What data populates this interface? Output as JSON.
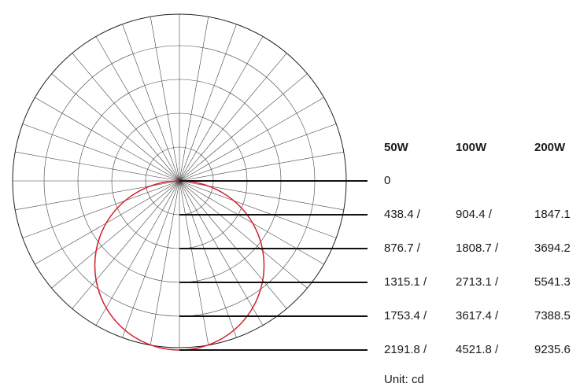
{
  "chart_data": {
    "type": "polar",
    "headers": [
      "50W",
      "100W",
      "200W"
    ],
    "rings": [
      {
        "v50": "0",
        "v100": "",
        "v200": ""
      },
      {
        "v50": "438.4 /",
        "v100": "904.4 /",
        "v200": "1847.1"
      },
      {
        "v50": "876.7 /",
        "v100": "1808.7 /",
        "v200": "3694.2"
      },
      {
        "v50": "1315.1 /",
        "v100": "2713.1 /",
        "v200": "5541.3"
      },
      {
        "v50": "1753.4 /",
        "v100": "3617.4 /",
        "v200": "7388.5"
      },
      {
        "v50": "2191.8 /",
        "v100": "4521.8 /",
        "v200": "9235.6"
      }
    ],
    "unit": "Unit: cd",
    "angle_step_deg": 10,
    "curve": {
      "shape": "circle",
      "color": "#d4202a",
      "peak_fraction": 1.0
    },
    "max_ring": 5
  }
}
